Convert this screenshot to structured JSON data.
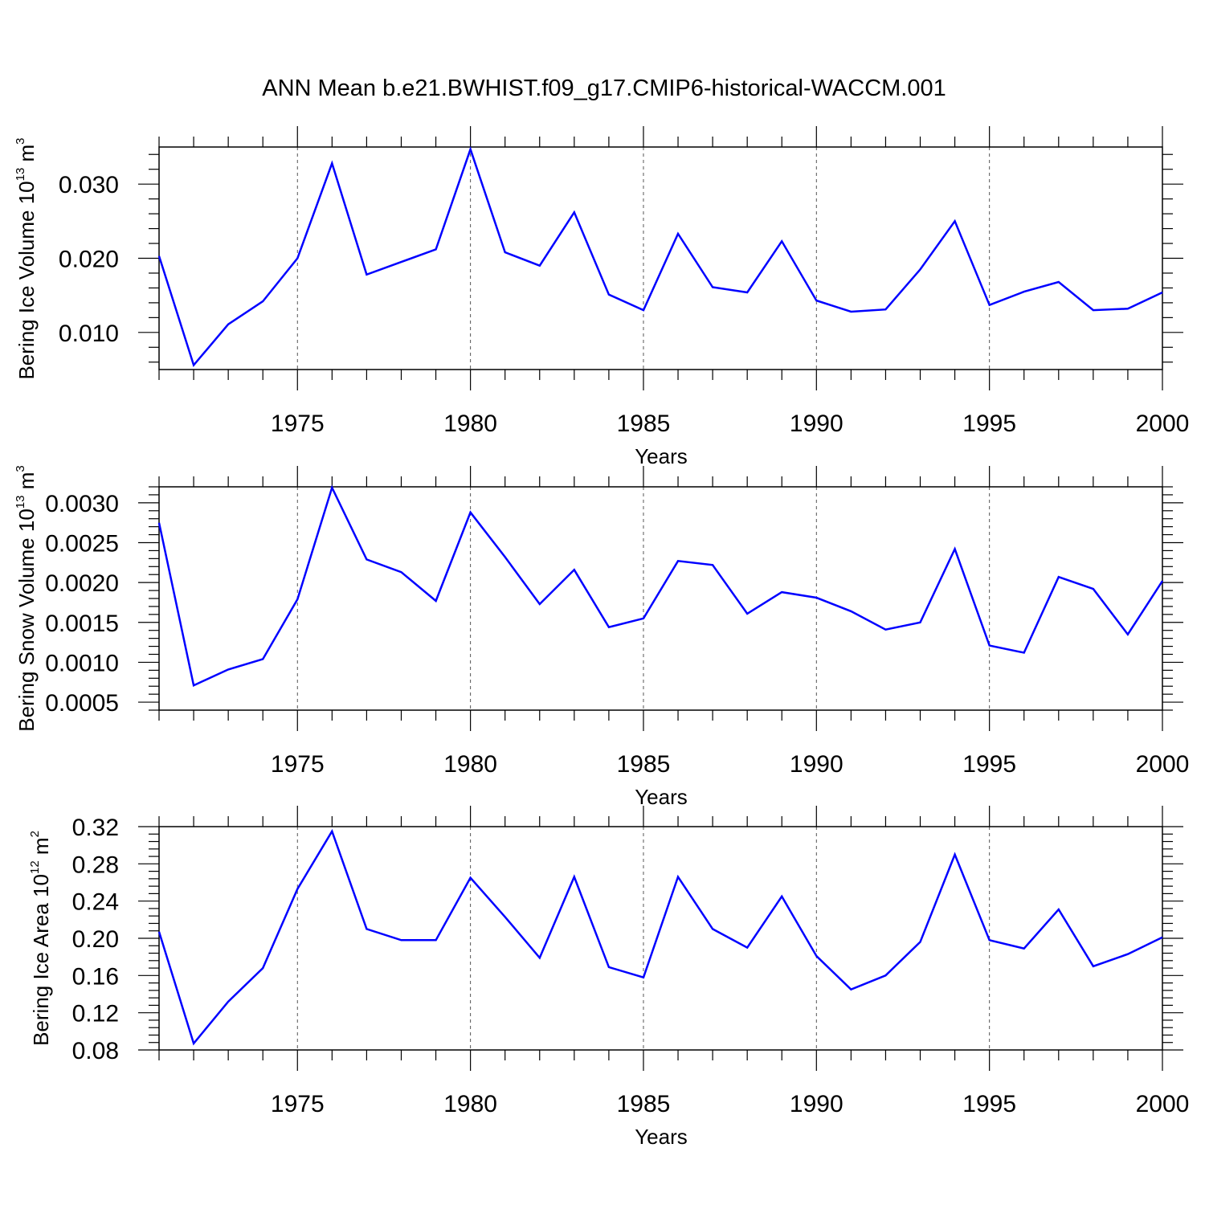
{
  "title": "ANN Mean b.e21.BWHIST.f09_g17.CMIP6-historical-WACCM.001",
  "colors": {
    "line": "#0000ff",
    "axis": "#000000",
    "grid": "#555555"
  },
  "chart_data": [
    {
      "type": "line",
      "xlabel": "Years",
      "ylabel": {
        "text": "Bering Ice Volume 10",
        "exp": "13",
        "unit": " m",
        "unit_exp": "3"
      },
      "xlim": [
        1971,
        2000
      ],
      "ylim": [
        0.005,
        0.035
      ],
      "xticks": [
        "1975",
        "1980",
        "1985",
        "1990",
        "1995",
        "2000"
      ],
      "yticks": [
        "0.010",
        "0.020",
        "0.030"
      ],
      "grid": "vertical dashed at major x ticks",
      "x": [
        1971,
        1972,
        1973,
        1974,
        1975,
        1976,
        1977,
        1978,
        1979,
        1980,
        1981,
        1982,
        1983,
        1984,
        1985,
        1986,
        1987,
        1988,
        1989,
        1990,
        1991,
        1992,
        1993,
        1994,
        1995,
        1996,
        1997,
        1998,
        1999,
        2000
      ],
      "values": [
        0.0203,
        0.0056,
        0.0111,
        0.0142,
        0.02,
        0.0328,
        0.0178,
        0.0195,
        0.0212,
        0.0347,
        0.0208,
        0.019,
        0.0262,
        0.0151,
        0.013,
        0.0233,
        0.0161,
        0.0154,
        0.0223,
        0.0143,
        0.0128,
        0.0131,
        0.0185,
        0.025,
        0.0137,
        0.0155,
        0.0168,
        0.013,
        0.0132,
        0.0154
      ]
    },
    {
      "type": "line",
      "xlabel": "Years",
      "ylabel": {
        "text": "Bering Snow Volume 10",
        "exp": "13",
        "unit": " m",
        "unit_exp": "3"
      },
      "xlim": [
        1971,
        2000
      ],
      "ylim": [
        0.0004,
        0.0032
      ],
      "xticks": [
        "1975",
        "1980",
        "1985",
        "1990",
        "1995",
        "2000"
      ],
      "yticks": [
        "0.0005",
        "0.0010",
        "0.0015",
        "0.0020",
        "0.0025",
        "0.0030"
      ],
      "grid": "vertical dashed at major x ticks",
      "x": [
        1971,
        1972,
        1973,
        1974,
        1975,
        1976,
        1977,
        1978,
        1979,
        1980,
        1981,
        1982,
        1983,
        1984,
        1985,
        1986,
        1987,
        1988,
        1989,
        1990,
        1991,
        1992,
        1993,
        1994,
        1995,
        1996,
        1997,
        1998,
        1999,
        2000
      ],
      "values": [
        0.00275,
        0.00071,
        0.00091,
        0.00104,
        0.00179,
        0.00319,
        0.00229,
        0.00213,
        0.00177,
        0.00288,
        0.00232,
        0.00173,
        0.00216,
        0.00144,
        0.00155,
        0.00227,
        0.00222,
        0.00161,
        0.00188,
        0.00181,
        0.00164,
        0.00141,
        0.0015,
        0.00242,
        0.00121,
        0.00112,
        0.00207,
        0.00192,
        0.00135,
        0.00202
      ]
    },
    {
      "type": "line",
      "xlabel": "Years",
      "ylabel": {
        "text": "Bering Ice Area 10",
        "exp": "12",
        "unit": " m",
        "unit_exp": "2"
      },
      "xlim": [
        1971,
        2000
      ],
      "ylim": [
        0.08,
        0.32
      ],
      "xticks": [
        "1975",
        "1980",
        "1985",
        "1990",
        "1995",
        "2000"
      ],
      "yticks": [
        "0.08",
        "0.12",
        "0.16",
        "0.20",
        "0.24",
        "0.28",
        "0.32"
      ],
      "grid": "vertical dashed at major x ticks",
      "x": [
        1971,
        1972,
        1973,
        1974,
        1975,
        1976,
        1977,
        1978,
        1979,
        1980,
        1981,
        1982,
        1983,
        1984,
        1985,
        1986,
        1987,
        1988,
        1989,
        1990,
        1991,
        1992,
        1993,
        1994,
        1995,
        1996,
        1997,
        1998,
        1999,
        2000
      ],
      "values": [
        0.207,
        0.087,
        0.132,
        0.168,
        0.253,
        0.315,
        0.21,
        0.198,
        0.198,
        0.265,
        0.223,
        0.179,
        0.266,
        0.169,
        0.158,
        0.266,
        0.21,
        0.19,
        0.245,
        0.181,
        0.145,
        0.16,
        0.196,
        0.29,
        0.198,
        0.189,
        0.231,
        0.17,
        0.183,
        0.201
      ]
    }
  ]
}
